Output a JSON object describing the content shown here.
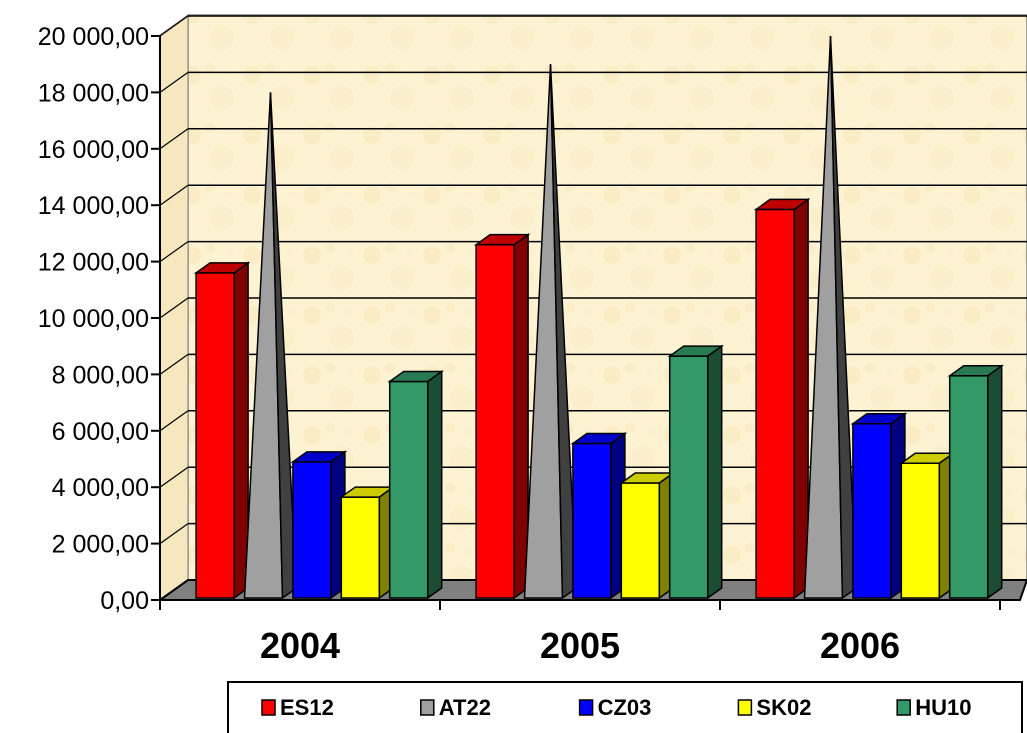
{
  "chart_data": {
    "type": "bar",
    "categories": [
      "2004",
      "2005",
      "2006"
    ],
    "series": [
      {
        "name": "ES12",
        "color": "#ff0000",
        "shape": "cylinder",
        "values": [
          11600,
          12600,
          13850
        ]
      },
      {
        "name": "AT22",
        "color": "#a0a0a0",
        "shape": "pyramid",
        "values": [
          18000,
          19000,
          20000
        ]
      },
      {
        "name": "CZ03",
        "color": "#0000ff",
        "shape": "box",
        "values": [
          4900,
          5550,
          6250
        ]
      },
      {
        "name": "SK02",
        "color": "#ffff00",
        "shape": "box",
        "values": [
          3650,
          4150,
          4850
        ]
      },
      {
        "name": "HU10",
        "color": "#339966",
        "shape": "box",
        "values": [
          7750,
          8650,
          7950
        ]
      }
    ],
    "yticks": [
      "0,00",
      "2 000,00",
      "4 000,00",
      "6 000,00",
      "8 000,00",
      "10 000,00",
      "12 000,00",
      "14 000,00",
      "16 000,00",
      "18 000,00",
      "20 000,00"
    ],
    "ylim": [
      0,
      20000
    ],
    "grid": true,
    "legend": "bottom",
    "background": "#fdf3d3",
    "title": "",
    "xlabel": "",
    "ylabel": ""
  }
}
